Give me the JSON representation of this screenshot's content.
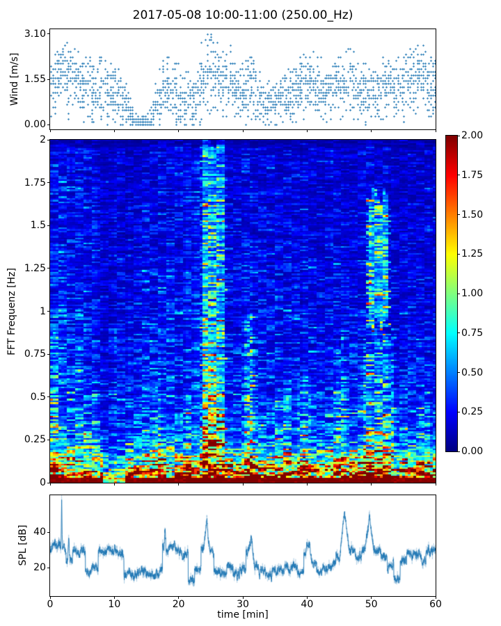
{
  "title": "2017-05-08 10:00-11:00 (250.00_Hz)",
  "xlabel": "time [min]",
  "background_color": "#ffffff",
  "accent_color": "#1f77b4",
  "xticks": {
    "values": [
      0,
      10,
      20,
      30,
      40,
      50,
      60
    ],
    "labels": [
      "0",
      "10",
      "20",
      "30",
      "40",
      "50",
      "60"
    ]
  },
  "chart_data": [
    {
      "type": "scatter",
      "name": "wind",
      "ylabel": "Wind [m/s]",
      "marker": "plus",
      "color": "#1f77b4",
      "x_range": [
        0,
        60
      ],
      "ylim": [
        -0.155,
        3.255
      ],
      "yticks": {
        "values": [
          3.1,
          1.55,
          0.0
        ],
        "labels": [
          "3.10",
          "1.55",
          "0.00"
        ]
      },
      "seed": 1234,
      "bin_minutes": 0.3,
      "points_per_bin": [
        6,
        15
      ],
      "quantize": 0.1,
      "mean_by_minute": [
        1.2,
        1.5,
        1.7,
        1.6,
        1.5,
        1.2,
        1.3,
        1.2,
        1.3,
        1.1,
        1.0,
        0.9,
        0.5,
        0.15,
        0.1,
        0.1,
        0.4,
        0.9,
        1.4,
        1.1,
        1.0,
        0.85,
        0.7,
        1.2,
        1.8,
        1.9,
        1.5,
        1.5,
        1.6,
        1.3,
        1.1,
        1.3,
        1.1,
        0.9,
        0.8,
        0.8,
        0.9,
        1.1,
        1.2,
        1.4,
        1.6,
        1.4,
        1.2,
        1.2,
        1.3,
        1.2,
        1.4,
        1.5,
        1.2,
        1.1,
        1.2,
        1.0,
        1.3,
        1.2,
        1.3,
        1.2,
        1.5,
        1.8,
        1.6,
        1.3,
        1.2
      ],
      "spread_by_minute": [
        0.5,
        0.55,
        0.6,
        0.6,
        0.55,
        0.5,
        0.5,
        0.5,
        0.5,
        0.5,
        0.5,
        0.45,
        0.4,
        0.12,
        0.1,
        0.1,
        0.3,
        0.5,
        0.55,
        0.5,
        0.5,
        0.5,
        0.5,
        0.55,
        0.65,
        0.65,
        0.6,
        0.55,
        0.55,
        0.5,
        0.5,
        0.55,
        0.5,
        0.45,
        0.4,
        0.4,
        0.45,
        0.5,
        0.5,
        0.55,
        0.55,
        0.5,
        0.5,
        0.5,
        0.5,
        0.5,
        0.55,
        0.55,
        0.5,
        0.5,
        0.55,
        0.5,
        0.55,
        0.5,
        0.5,
        0.5,
        0.55,
        0.6,
        0.55,
        0.5,
        0.5
      ]
    },
    {
      "type": "heatmap",
      "name": "spectrogram",
      "ylabel": "FFT Frequenz [Hz]",
      "colormap": "jet",
      "x_range": [
        0,
        60
      ],
      "f_range": [
        0,
        2
      ],
      "value_range": [
        0,
        2
      ],
      "yticks": {
        "values": [
          2,
          1.75,
          1.5,
          1.25,
          1,
          0.75,
          0.5,
          0.25,
          0
        ],
        "labels": [
          "2",
          "1.75",
          "1.5",
          "1.25",
          "1",
          "0.75",
          "0.5",
          "0.25",
          "0"
        ]
      },
      "seed": 777,
      "cols": 139,
      "rows": 200,
      "base": {
        "offset": 0.08,
        "a1": 0.3,
        "d1": 2.0,
        "a2": 0.45,
        "d2": 0.22
      },
      "time_fade": {
        "start": 1.18,
        "slope": -0.006
      },
      "hot_band_f": 0.3,
      "hot_gap_t": [
        8.4,
        11.6
      ],
      "col_mult_by_minute": [
        1.05,
        1.08,
        1.0,
        0.97,
        1.0,
        1.0,
        0.96,
        0.92,
        0.62,
        0.6,
        0.78,
        0.72,
        0.7,
        0.82,
        0.9,
        0.95,
        0.95,
        1.0,
        1.02,
        0.98,
        0.9,
        0.97,
        1.0,
        1.1,
        1.25,
        1.2,
        1.15,
        1.1,
        0.82,
        0.88,
        1.05,
        1.1,
        1.0,
        0.98,
        0.95,
        0.97,
        1.0,
        1.02,
        1.0,
        1.0,
        1.05,
        1.0,
        0.92,
        0.95,
        1.0,
        1.02,
        1.05,
        1.03,
        1.1,
        1.15,
        1.2,
        1.1,
        1.15,
        1.05,
        0.98,
        1.0,
        1.02,
        1.05,
        1.02,
        1.0,
        1.0
      ],
      "patches": [
        {
          "t": [
            23.7,
            27.2
          ],
          "f": [
            0.12,
            2
          ],
          "mult": 2.2,
          "add": 0.05
        },
        {
          "t": [
            23.7,
            27.2
          ],
          "f": [
            0,
            0.12
          ],
          "mult": 1.25,
          "add": 0
        },
        {
          "t": [
            49.4,
            52.7
          ],
          "f": [
            0.92,
            1.68
          ],
          "mult": 2.7,
          "add": 0.08
        },
        {
          "t": [
            30.4,
            31.7
          ],
          "f": [
            0,
            1.0
          ],
          "mult": 1.7,
          "add": 0
        },
        {
          "t": [
            44.3,
            46.3
          ],
          "f": [
            0,
            0.8
          ],
          "mult": 1.5,
          "add": 0
        },
        {
          "t": [
            48.9,
            53.6
          ],
          "f": [
            0,
            0.85
          ],
          "mult": 1.7,
          "add": 0
        },
        {
          "t": [
            57.3,
            59.2
          ],
          "f": [
            0,
            0.55
          ],
          "mult": 1.35,
          "add": 0
        },
        {
          "t": [
            0,
            1.3
          ],
          "f": [
            0,
            0.9
          ],
          "mult": 1.45,
          "add": 0
        },
        {
          "t": [
            16.2,
            17.2
          ],
          "f": [
            0,
            0.6
          ],
          "mult": 1.3,
          "add": 0
        },
        {
          "t": [
            21.0,
            22.0
          ],
          "f": [
            0,
            0.5
          ],
          "mult": 1.25,
          "add": 0
        },
        {
          "t": [
            34.8,
            37.3
          ],
          "f": [
            0,
            0.5
          ],
          "mult": 1.4,
          "add": 0
        },
        {
          "t": [
            38.5,
            40.5
          ],
          "f": [
            0,
            0.6
          ],
          "mult": 1.4,
          "add": 0
        }
      ]
    },
    {
      "type": "line",
      "name": "spl",
      "ylabel": "SPL [dB]",
      "color": "#1f77b4",
      "x_range": [
        0,
        60
      ],
      "ylim": [
        4,
        61
      ],
      "yticks": {
        "values": [
          40,
          20
        ],
        "labels": [
          "40",
          "20"
        ]
      },
      "seed": 99,
      "base_by_minute": [
        32,
        32,
        31,
        24,
        29,
        29,
        17,
        20,
        30,
        30,
        29,
        28,
        17,
        16,
        17,
        17,
        15,
        17,
        31,
        31,
        30,
        28,
        13,
        20,
        30,
        28,
        19,
        17,
        21,
        15,
        19,
        28,
        21,
        19,
        17,
        19,
        18,
        20,
        21,
        17,
        28,
        21,
        18,
        19,
        21,
        26,
        32,
        31,
        27,
        30,
        33,
        30,
        26,
        21,
        15,
        24,
        27,
        29,
        25,
        31,
        30
      ],
      "spikes": [
        {
          "t": 1.8,
          "v": 58,
          "w": 0.12
        },
        {
          "t": 2.9,
          "v": 36,
          "w": 0.2
        },
        {
          "t": 17.9,
          "v": 42,
          "w": 0.15
        },
        {
          "t": 24.4,
          "v": 47,
          "w": 0.5
        },
        {
          "t": 31.3,
          "v": 36,
          "w": 0.6
        },
        {
          "t": 40.3,
          "v": 33,
          "w": 0.5
        },
        {
          "t": 45.8,
          "v": 50,
          "w": 0.8
        },
        {
          "t": 49.7,
          "v": 48,
          "w": 0.7
        }
      ]
    }
  ],
  "colorbar": {
    "vmin": 0,
    "vmax": 2,
    "tick_values": [
      2.0,
      1.75,
      1.5,
      1.25,
      1.0,
      0.75,
      0.5,
      0.25,
      0.0
    ],
    "tick_labels": [
      "2.00",
      "1.75",
      "1.50",
      "1.25",
      "1.00",
      "0.75",
      "0.50",
      "0.25",
      "0.00"
    ]
  }
}
